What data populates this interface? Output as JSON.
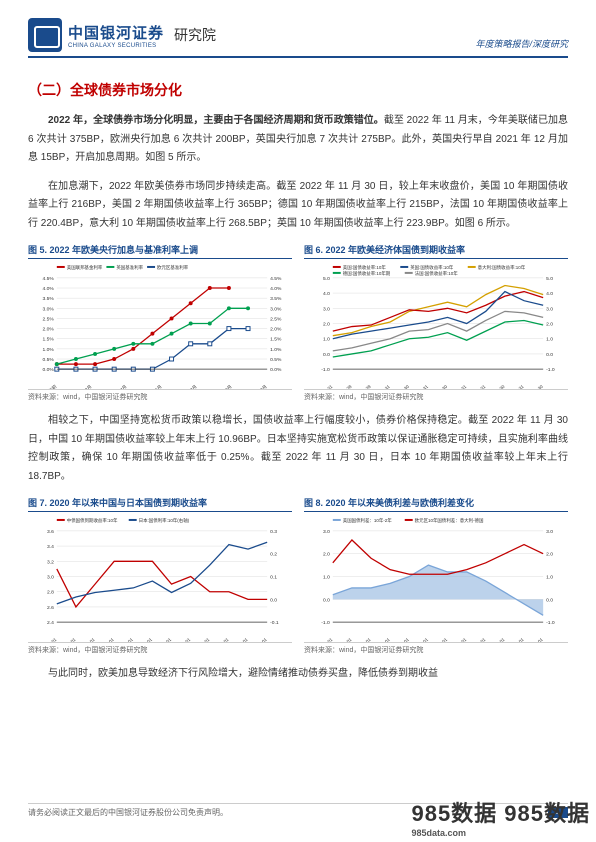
{
  "header": {
    "company_cn": "中国银河证券",
    "company_en": "CHINA GALAXY SECURITIES",
    "institute": "研究院",
    "right": "年度策略报告/深度研究"
  },
  "section_title": "（二）全球债券市场分化",
  "para1_bold": "2022 年，全球债券市场分化明显，主要由于各国经济周期和货币政策错位。",
  "para1_rest": "截至 2022 年 11 月末，今年美联储已加息 6 次共计 375BP，欧洲央行加息 6 次共计 200BP，英国央行加息 7 次共计 275BP。此外，英国央行早自 2021 年 12 月加息 15BP，开启加息周期。如图 5 所示。",
  "para2": "在加息潮下，2022 年欧美债券市场同步持续走高。截至 2022 年 11 月 30 日，较上年末收盘价，美国 10 年期国债收益率上行 216BP，美国 2 年期国债收益率上行 365BP；德国 10 年期国债收益率上行 215BP，法国 10 年期国债收益率上行 220.4BP，意大利 10 年期国债收益率上行 268.5BP；英国 10 年期国债收益率上行 223.9BP。如图 6 所示。",
  "para3": "相较之下，中国坚持宽松货币政策以稳增长，国债收益率上行幅度较小，债券价格保持稳定。截至 2022 年 11 月 30 日，中国 10 年期国债收益率较上年末上行 10.96BP。日本坚持实施宽松货币政策以保证通胀稳定可持续，且实施利率曲线控制政策，确保 10 年期国债收益率低于 0.25%。截至 2022 年 11 月 30 日，日本 10 年期国债收益率较上年末上行 18.7BP。",
  "para4": "与此同时，欧美加息导致经济下行风险增大，避险情绪推动债券买盘，降低债券到期收益",
  "chart5": {
    "title": "图 5. 2022 年欧美央行加息与基准利率上调",
    "legend": [
      {
        "label": "美国联邦基金利率",
        "color": "#c00000"
      },
      {
        "label": "英国基准利率",
        "color": "#00a050"
      },
      {
        "label": "欧元区基准利率",
        "color": "#1a4b8c"
      }
    ],
    "xaxis": [
      "年初",
      "2月",
      "4月",
      "6月",
      "8月",
      "10月",
      "12月"
    ],
    "yleft": {
      "min": 0,
      "max": 4.5,
      "step": 0.5,
      "fmt": "%"
    },
    "yright": {
      "min": 0,
      "max": 4.5,
      "step": 0.5,
      "fmt": "%"
    },
    "series": {
      "us": [
        0.25,
        0.25,
        0.25,
        0.5,
        1.0,
        1.75,
        2.5,
        3.25,
        4.0,
        4.0,
        null,
        null
      ],
      "uk": [
        0.25,
        0.5,
        0.75,
        1.0,
        1.25,
        1.25,
        1.75,
        2.25,
        2.25,
        3.0,
        3.0,
        null
      ],
      "eu": [
        0,
        0,
        0,
        0,
        0,
        0,
        0.5,
        1.25,
        1.25,
        2.0,
        2.0,
        null
      ]
    },
    "colors": {
      "us": "#c00000",
      "uk": "#00a050",
      "eu": "#1a4b8c"
    }
  },
  "chart6": {
    "title": "图 6. 2022 年欧美经济体国债到期收益率",
    "legend": [
      {
        "label": "美国:国债收益率:10年",
        "color": "#c00000"
      },
      {
        "label": "英国:国债收益率:10年",
        "color": "#1a4b8c"
      },
      {
        "label": "意大利:国债收益率:10年",
        "color": "#d4a000"
      },
      {
        "label": "德国:国债收益率:10年期",
        "color": "#00a050"
      },
      {
        "label": "法国:国债收益率:10年",
        "color": "#888"
      }
    ],
    "xaxis": [
      "21-12-31",
      "22-01-28",
      "22-02-28",
      "22-03-31",
      "22-04-30",
      "22-05-31",
      "22-06-30",
      "22-07-31",
      "22-08-31",
      "22-09-30",
      "22-10-31",
      "22-11-30"
    ],
    "yleft": {
      "min": -1,
      "max": 5,
      "step": 1
    },
    "yright": {
      "min": -1,
      "max": 5,
      "step": 1
    },
    "series": {
      "it": [
        1.2,
        1.4,
        1.8,
        2.1,
        2.8,
        3.1,
        3.4,
        3.1,
        3.9,
        4.5,
        4.3,
        3.9
      ],
      "us": [
        1.5,
        1.8,
        1.9,
        2.4,
        2.9,
        2.8,
        3.0,
        2.7,
        3.2,
        3.8,
        4.1,
        3.7
      ],
      "uk": [
        1.0,
        1.3,
        1.5,
        1.7,
        1.9,
        2.1,
        2.4,
        2.0,
        2.8,
        4.1,
        3.5,
        3.2
      ],
      "fr": [
        0.2,
        0.4,
        0.7,
        1.0,
        1.5,
        1.6,
        2.0,
        1.5,
        2.2,
        2.8,
        2.7,
        2.4
      ],
      "de": [
        -0.2,
        0.0,
        0.2,
        0.6,
        1.0,
        1.1,
        1.4,
        0.9,
        1.5,
        2.1,
        2.2,
        1.9
      ]
    },
    "colors": {
      "it": "#d4a000",
      "us": "#c00000",
      "uk": "#1a4b8c",
      "fr": "#888",
      "de": "#00a050"
    }
  },
  "chart7": {
    "title": "图 7. 2020 年以来中国与日本国债到期收益率",
    "legend": [
      {
        "label": "中债国债到期收益率:10年",
        "color": "#c00000"
      },
      {
        "label": "日本:国债利率:10年(右轴)",
        "color": "#1a4b8c"
      }
    ],
    "xaxis": [
      "20-01-01",
      "20-04-01",
      "20-07-01",
      "20-10-01",
      "21-01-01",
      "21-04-01",
      "21-07-01",
      "21-10-01",
      "22-01-01",
      "22-04-01",
      "22-07-01",
      "22-10-01"
    ],
    "yleft": {
      "min": 2.4,
      "max": 3.6,
      "step": 0.2
    },
    "yright": {
      "min": -0.1,
      "max": 0.3,
      "step": 0.1
    },
    "series": {
      "cn": [
        3.1,
        2.6,
        2.9,
        3.2,
        3.2,
        3.2,
        2.9,
        3.0,
        2.8,
        2.8,
        2.7,
        2.7
      ],
      "jp": [
        -0.02,
        0.01,
        0.03,
        0.04,
        0.05,
        0.08,
        0.03,
        0.07,
        0.15,
        0.24,
        0.22,
        0.25
      ]
    },
    "colors": {
      "cn": "#c00000",
      "jp": "#1a4b8c"
    }
  },
  "chart8": {
    "title": "图 8. 2020 年以来美债利差与欧债利差变化",
    "legend": [
      {
        "label": "美国国债利差：10年-2年",
        "color": "#7aa5d8"
      },
      {
        "label": "欧元区10年国债利差：意大利-德国",
        "color": "#c00000"
      }
    ],
    "xaxis": [
      "20-01-01",
      "20-04-01",
      "20-07-01",
      "20-10-01",
      "21-01-01",
      "21-04-01",
      "21-07-01",
      "21-10-01",
      "22-01-01",
      "22-04-01",
      "22-07-01",
      "22-10-01"
    ],
    "yleft": {
      "min": -1.0,
      "max": 3.0,
      "step": 1.0
    },
    "yright": {
      "min": -1.0,
      "max": 3.0,
      "step": 1.0
    },
    "series": {
      "us_spread": [
        0.2,
        0.5,
        0.5,
        0.7,
        1.0,
        1.5,
        1.2,
        1.2,
        0.8,
        0.3,
        -0.2,
        -0.7
      ],
      "eu_spread": [
        1.6,
        2.6,
        1.8,
        1.3,
        1.1,
        1.1,
        1.1,
        1.3,
        1.6,
        2.0,
        2.4,
        2.0
      ]
    },
    "colors": {
      "us_spread": "#7aa5d8",
      "eu_spread": "#c00000"
    }
  },
  "source": "资料来源：wind，中国银河证券研究院",
  "footer": {
    "disclaimer": "请务必阅读正文最后的中国银河证券股份公司免责声明。",
    "page": "4"
  },
  "watermark": {
    "main": "985数据 985数据",
    "sub": "985data.com"
  }
}
